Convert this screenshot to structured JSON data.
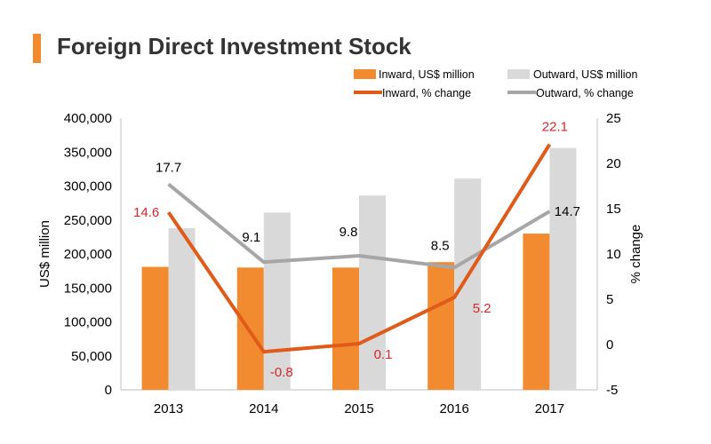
{
  "colors": {
    "inward_bar": "#f28b30",
    "outward_bar": "#d9d9d9",
    "inward_line": "#e05a1a",
    "outward_line": "#a6a6a6",
    "inward_label": "#d7262c",
    "outward_label": "#000000",
    "title_accent": "#f28b30"
  },
  "chart_data": {
    "type": "bar",
    "title": "Foreign Direct Investment Stock",
    "categories": [
      "2013",
      "2014",
      "2015",
      "2016",
      "2017"
    ],
    "ylabel": "US$ million",
    "y2label": "% change",
    "ylim": [
      0,
      400000
    ],
    "y2lim": [
      -5,
      25
    ],
    "yticks": [
      "400,000",
      "350,000",
      "300,000",
      "250,000",
      "200,000",
      "150,000",
      "100,000",
      "50,000",
      "0"
    ],
    "ytick_values": [
      400000,
      350000,
      300000,
      250000,
      200000,
      150000,
      100000,
      50000,
      0
    ],
    "y2ticks": [
      "25",
      "20",
      "15",
      "10",
      "5",
      "0",
      "-5"
    ],
    "y2tick_values": [
      25,
      20,
      15,
      10,
      5,
      0,
      -5
    ],
    "legend": {
      "inward_bar": "Inward, US$ million",
      "outward_bar": "Outward, US$ million",
      "inward_line": "Inward, % change",
      "outward_line": "Outward, % change"
    },
    "series": [
      {
        "name": "Inward, US$ million",
        "kind": "bar",
        "values": [
          181000,
          180000,
          180000,
          188000,
          230000
        ]
      },
      {
        "name": "Outward, US$ million",
        "kind": "bar",
        "values": [
          238000,
          261000,
          286000,
          311000,
          356000
        ]
      },
      {
        "name": "Inward, % change",
        "kind": "line",
        "axis": "right",
        "values": [
          14.6,
          -0.8,
          0.1,
          5.2,
          22.1
        ],
        "labels": [
          "14.6",
          "-0.8",
          "0.1",
          "5.2",
          "22.1"
        ]
      },
      {
        "name": "Outward, % change",
        "kind": "line",
        "axis": "right",
        "values": [
          17.7,
          9.1,
          9.8,
          8.5,
          14.7
        ],
        "labels": [
          "17.7",
          "9.1",
          "9.8",
          "8.5",
          "14.7"
        ]
      }
    ]
  }
}
